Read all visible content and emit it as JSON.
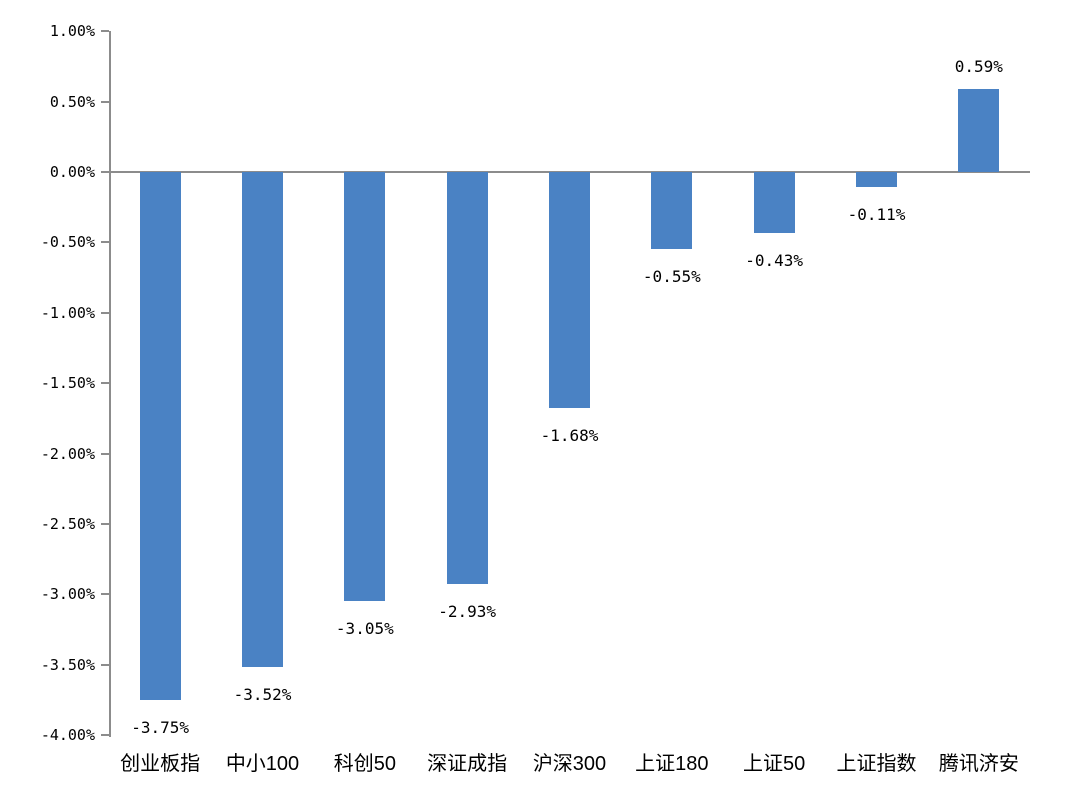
{
  "page": {
    "background_color": "#FFFFFF"
  },
  "chart_data": {
    "type": "bar",
    "title": "",
    "xlabel": "",
    "ylabel": "",
    "grid": false,
    "legend": false,
    "orientation": "vertical",
    "categories": [
      "创业板指",
      "中小100",
      "科创50",
      "深证成指",
      "沪深300",
      "上证180",
      "上证50",
      "上证指数",
      "腾讯济安"
    ],
    "values": [
      -3.75,
      -3.52,
      -3.05,
      -2.93,
      -1.68,
      -0.55,
      -0.43,
      -0.11,
      0.59
    ],
    "data_labels": [
      "-3.75%",
      "-3.52%",
      "-3.05%",
      "-2.93%",
      "-1.68%",
      "-0.55%",
      "-0.43%",
      "-0.11%",
      "0.59%"
    ],
    "ylim": [
      -4.0,
      1.0
    ],
    "y_tick_step": 0.5,
    "y_ticks": [
      1.0,
      0.5,
      0.0,
      -0.5,
      -1.0,
      -1.5,
      -2.0,
      -2.5,
      -3.0,
      -3.5,
      -4.0
    ],
    "y_tick_labels": [
      "1.00%",
      "0.50%",
      "0.00%",
      "-0.50%",
      "-1.00%",
      "-1.50%",
      "-2.00%",
      "-2.50%",
      "-3.00%",
      "-3.50%",
      "-4.00%"
    ],
    "bar_color": "#4A82C4",
    "axis_color": "#8C8C8C",
    "text_color": "#000000",
    "data_label_position": "outside_end"
  }
}
